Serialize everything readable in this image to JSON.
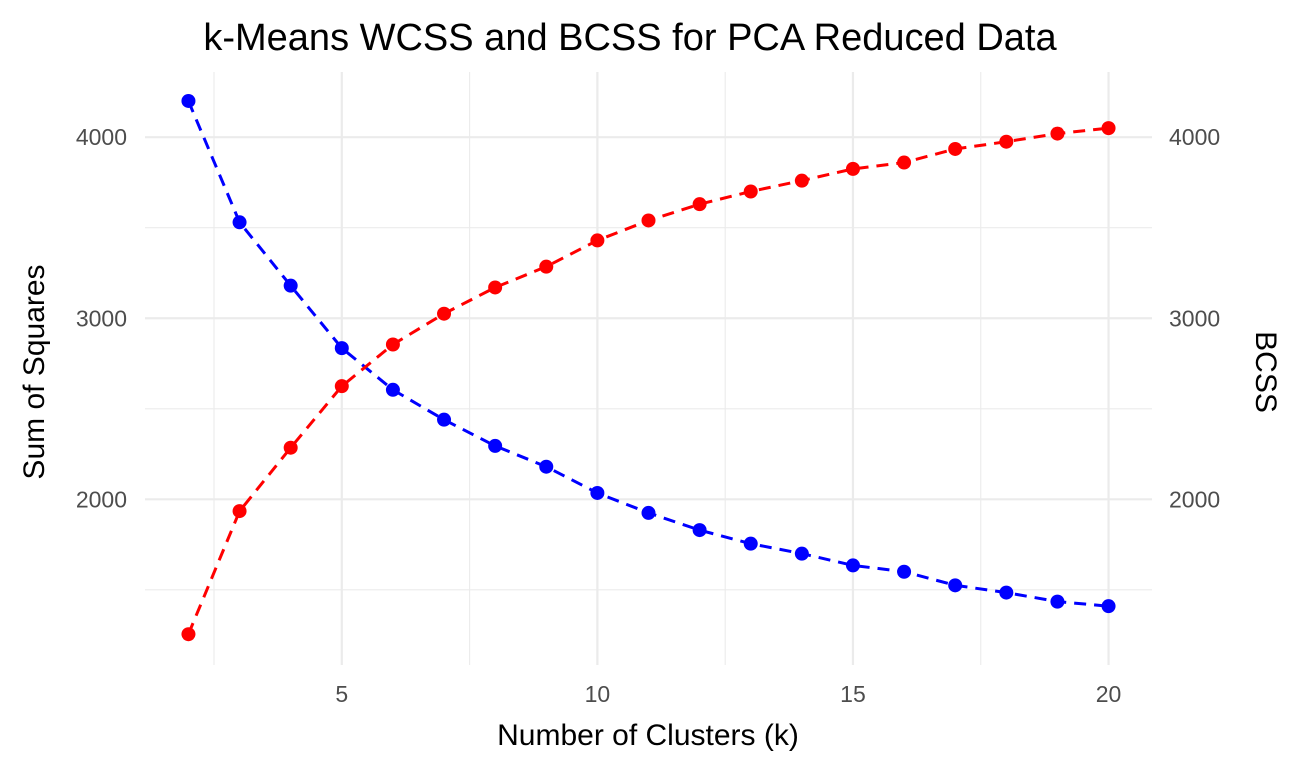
{
  "chart_data": {
    "type": "line",
    "title": "k-Means WCSS and BCSS for PCA Reduced Data",
    "xlabel": "Number of Clusters (k)",
    "ylabel": "Sum of Squares",
    "ylabel_right": "BCSS",
    "x": [
      2,
      3,
      4,
      5,
      6,
      7,
      8,
      9,
      10,
      11,
      12,
      13,
      14,
      15,
      16,
      17,
      18,
      19,
      20
    ],
    "xlim": [
      1.15,
      20.85
    ],
    "ylim": [
      1085,
      4360
    ],
    "x_ticks": [
      5,
      10,
      15,
      20
    ],
    "y_ticks": [
      2000,
      3000,
      4000
    ],
    "y_ticks_right": [
      2000,
      3000,
      4000
    ],
    "grid": true,
    "series": [
      {
        "color": "#0000ff",
        "line_style": "dashed",
        "values": [
          4200,
          3530,
          3180,
          2835,
          2605,
          2440,
          2295,
          2180,
          2035,
          1925,
          1830,
          1755,
          1700,
          1635,
          1600,
          1525,
          1485,
          1435,
          1410
        ]
      },
      {
        "color": "#ff0000",
        "line_style": "dashed",
        "values": [
          1255,
          1935,
          2285,
          2625,
          2855,
          3025,
          3170,
          3285,
          3430,
          3540,
          3630,
          3700,
          3760,
          3825,
          3860,
          3935,
          3975,
          4020,
          4050
        ]
      }
    ]
  }
}
